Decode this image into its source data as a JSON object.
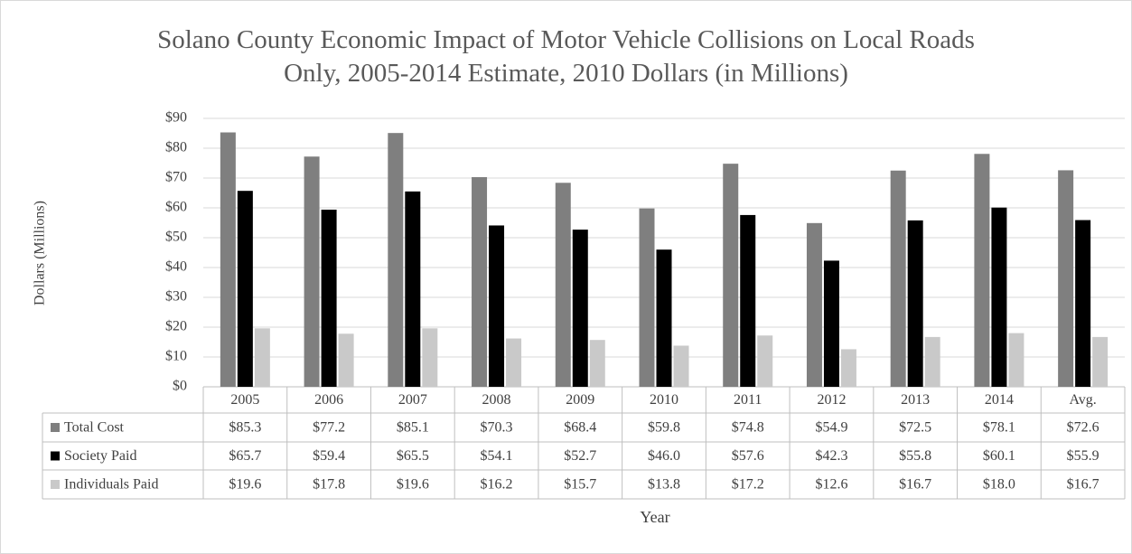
{
  "chart_data": {
    "type": "bar",
    "title": "Solano County Economic Impact of Motor Vehicle Collisions on Local Roads Only, 2005-2014 Estimate, 2010 Dollars (in Millions)",
    "x_label": "Year",
    "y_label": "Dollars (Millions)",
    "categories": [
      "2005",
      "2006",
      "2007",
      "2008",
      "2009",
      "2010",
      "2011",
      "2012",
      "2013",
      "2014",
      "Avg."
    ],
    "series": [
      {
        "name": "Total Cost",
        "color": "#7f7f7f",
        "values": [
          85.3,
          77.2,
          85.1,
          70.3,
          68.4,
          59.8,
          74.8,
          54.9,
          72.5,
          78.1,
          72.6
        ],
        "value_labels": [
          "$85.3",
          "$77.2",
          "$85.1",
          "$70.3",
          "$68.4",
          "$59.8",
          "$74.8",
          "$54.9",
          "$72.5",
          "$78.1",
          "$72.6"
        ]
      },
      {
        "name": "Society Paid",
        "color": "#000000",
        "values": [
          65.7,
          59.4,
          65.5,
          54.1,
          52.7,
          46.0,
          57.6,
          42.3,
          55.8,
          60.1,
          55.9
        ],
        "value_labels": [
          "$65.7",
          "$59.4",
          "$65.5",
          "$54.1",
          "$52.7",
          "$46.0",
          "$57.6",
          "$42.3",
          "$55.8",
          "$60.1",
          "$55.9"
        ]
      },
      {
        "name": "Individuals Paid",
        "color": "#c9c9c9",
        "values": [
          19.6,
          17.8,
          19.6,
          16.2,
          15.7,
          13.8,
          17.2,
          12.6,
          16.7,
          18.0,
          16.7
        ],
        "value_labels": [
          "$19.6",
          "$17.8",
          "$19.6",
          "$16.2",
          "$15.7",
          "$13.8",
          "$17.2",
          "$12.6",
          "$16.7",
          "$18.0",
          "$16.7"
        ]
      }
    ],
    "ylim": [
      0,
      90
    ],
    "yticks": [
      {
        "value": 0,
        "label": "$0"
      },
      {
        "value": 10,
        "label": "$10"
      },
      {
        "value": 20,
        "label": "$20"
      },
      {
        "value": 30,
        "label": "$30"
      },
      {
        "value": 40,
        "label": "$40"
      },
      {
        "value": 50,
        "label": "$50"
      },
      {
        "value": 60,
        "label": "$60"
      },
      {
        "value": 70,
        "label": "$70"
      },
      {
        "value": 80,
        "label": "$80"
      },
      {
        "value": 90,
        "label": "$90"
      }
    ],
    "grid": true
  }
}
